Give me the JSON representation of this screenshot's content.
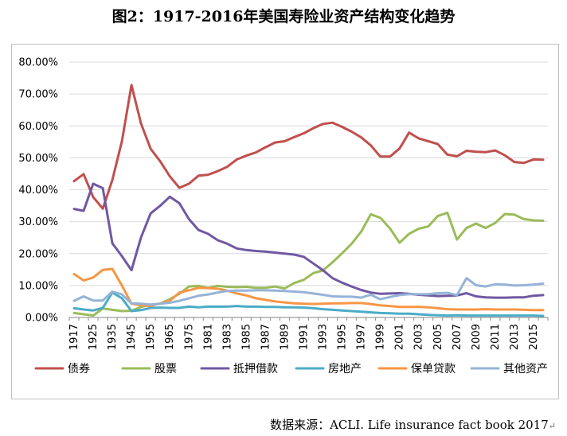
{
  "header": {
    "title": "图2：1917-2016年美国寿险业资产结构变化趋势"
  },
  "footer": {
    "source": "数据来源：ACLI. Life insurance fact book 2017"
  },
  "chart_data": {
    "type": "line",
    "title": "",
    "xlabel": "",
    "ylabel": "",
    "ylim": [
      0,
      80
    ],
    "y_ticks": [
      "0.00%",
      "10.00%",
      "20.00%",
      "30.00%",
      "40.00%",
      "50.00%",
      "60.00%",
      "70.00%",
      "80.00%"
    ],
    "x_tick_labels": [
      "1917",
      "1925",
      "1935",
      "1945",
      "1955",
      "1965",
      "1975",
      "1981",
      "1983",
      "1985",
      "1987",
      "1989",
      "1991",
      "1993",
      "1995",
      "1997",
      "1999",
      "2001",
      "2003",
      "2005",
      "2007",
      "2009",
      "2011",
      "2013",
      "2015"
    ],
    "grid": true,
    "legend_position": "bottom",
    "x": [
      "1917",
      "1920",
      "1925",
      "1930",
      "1935",
      "1940",
      "1945",
      "1950",
      "1955",
      "1960",
      "1965",
      "1970",
      "1975",
      "1980",
      "1981",
      "1982",
      "1983",
      "1984",
      "1985",
      "1986",
      "1987",
      "1988",
      "1989",
      "1990",
      "1991",
      "1992",
      "1993",
      "1994",
      "1995",
      "1996",
      "1997",
      "1998",
      "1999",
      "2000",
      "2001",
      "2002",
      "2003",
      "2004",
      "2005",
      "2006",
      "2007",
      "2008",
      "2009",
      "2010",
      "2011",
      "2012",
      "2013",
      "2014",
      "2015",
      "2016"
    ],
    "series": [
      {
        "name": "债券",
        "color": "#c0504d",
        "values": [
          42.7,
          44.9,
          37.7,
          34.1,
          43.1,
          55.2,
          72.8,
          60.7,
          52.8,
          48.9,
          44.2,
          40.6,
          41.9,
          44.4,
          44.7,
          45.8,
          47.2,
          49.5,
          50.7,
          51.7,
          53.3,
          54.8,
          55.2,
          56.5,
          57.7,
          59.3,
          60.6,
          61.0,
          59.7,
          58.2,
          56.4,
          53.9,
          50.4,
          50.4,
          52.9,
          57.9,
          56.1,
          55.2,
          54.3,
          51.0,
          50.5,
          52.2,
          51.9,
          51.8,
          52.3,
          50.8,
          48.7,
          48.4,
          49.5,
          49.4
        ]
      },
      {
        "name": "股票",
        "color": "#9bbb59",
        "values": [
          1.4,
          1.0,
          0.6,
          2.8,
          2.4,
          2.0,
          2.1,
          3.3,
          4.0,
          4.3,
          5.7,
          7.4,
          9.7,
          9.9,
          9.3,
          9.9,
          9.6,
          9.5,
          9.6,
          9.3,
          9.3,
          9.7,
          9.1,
          10.8,
          11.8,
          13.9,
          14.7,
          17.3,
          20.1,
          23.1,
          26.9,
          32.3,
          31.2,
          27.9,
          23.4,
          26.2,
          27.8,
          28.5,
          31.8,
          32.8,
          24.4,
          28.0,
          29.4,
          28.0,
          29.6,
          32.4,
          32.2,
          30.8,
          30.4,
          30.3
        ]
      },
      {
        "name": "抵押借款",
        "color": "#7058a3",
        "values": [
          34.0,
          33.4,
          41.9,
          40.5,
          23.2,
          19.2,
          14.8,
          25.1,
          32.6,
          35.0,
          37.8,
          35.8,
          30.8,
          27.4,
          26.2,
          24.2,
          23.1,
          21.6,
          21.1,
          20.8,
          20.6,
          20.3,
          20.0,
          19.7,
          19.0,
          16.9,
          14.8,
          12.3,
          10.9,
          9.7,
          8.6,
          7.8,
          7.4,
          7.5,
          7.6,
          7.4,
          7.1,
          6.9,
          6.7,
          6.8,
          6.9,
          7.6,
          6.6,
          6.3,
          6.2,
          6.2,
          6.3,
          6.3,
          6.8,
          7.0
        ]
      },
      {
        "name": "房地产",
        "color": "#4bacc6",
        "values": [
          2.9,
          2.5,
          2.2,
          3.0,
          7.8,
          6.0,
          2.0,
          2.3,
          3.0,
          3.1,
          3.0,
          3.0,
          3.4,
          3.2,
          3.4,
          3.4,
          3.4,
          3.6,
          3.4,
          3.4,
          3.3,
          3.3,
          3.2,
          3.2,
          3.1,
          2.9,
          2.6,
          2.4,
          2.2,
          2.0,
          1.8,
          1.6,
          1.4,
          1.3,
          1.2,
          1.2,
          1.0,
          0.8,
          0.7,
          0.6,
          0.7,
          0.6,
          0.6,
          0.6,
          0.6,
          0.6,
          0.6,
          0.6,
          0.6,
          0.5
        ]
      },
      {
        "name": "保单贷款",
        "color": "#f79646",
        "values": [
          13.6,
          11.6,
          12.5,
          14.9,
          15.2,
          10.0,
          4.3,
          3.8,
          3.6,
          4.4,
          5.2,
          7.8,
          8.5,
          9.3,
          9.2,
          9.0,
          8.4,
          7.5,
          6.9,
          6.0,
          5.5,
          5.0,
          4.7,
          4.4,
          4.3,
          4.2,
          4.3,
          4.4,
          4.4,
          4.5,
          4.5,
          4.2,
          3.8,
          3.6,
          3.3,
          3.3,
          3.3,
          3.2,
          2.9,
          2.6,
          2.5,
          2.5,
          2.5,
          2.6,
          2.5,
          2.5,
          2.5,
          2.4,
          2.3,
          2.3
        ]
      },
      {
        "name": "其他资产",
        "color": "#95b3d7",
        "values": [
          5.2,
          6.6,
          5.3,
          5.3,
          8.1,
          7.2,
          4.4,
          4.3,
          4.0,
          4.3,
          4.6,
          5.2,
          6.0,
          6.8,
          7.2,
          7.8,
          8.3,
          8.4,
          8.4,
          8.5,
          8.5,
          8.4,
          8.3,
          8.1,
          7.9,
          7.5,
          7.1,
          6.6,
          6.5,
          6.5,
          6.2,
          7.1,
          5.7,
          6.4,
          7.0,
          7.3,
          7.3,
          7.3,
          7.6,
          7.7,
          7.0,
          12.3,
          10.1,
          9.7,
          10.4,
          10.3,
          10.0,
          10.1,
          10.3,
          10.6
        ]
      }
    ]
  }
}
